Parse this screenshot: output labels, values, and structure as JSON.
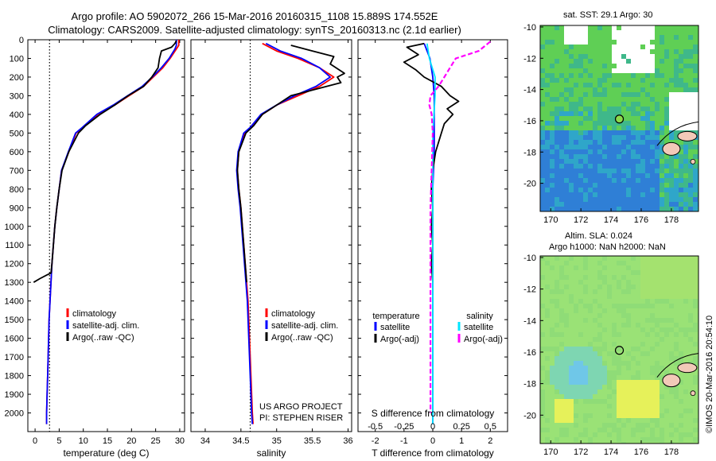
{
  "header": {
    "title_line1": "Argo profile: AO 5902072_266 15-Mar-2016 20160315_1108 15.889S 174.552E",
    "title_line2": "Climatology: CARS2009. Satellite-adjusted climatology: synTS_20160313.nc (2.1d earlier)"
  },
  "project": {
    "line1": "US ARGO PROJECT",
    "line2": "PI: STEPHEN RISER"
  },
  "stamp": "©IMOS 20-Mar-2016 20:54:10",
  "colors": {
    "climatology": "#ff0000",
    "satellite": "#0000ff",
    "argo": "#000000",
    "sal_satellite": "#00e5ff",
    "sal_argo": "#ff00ff"
  },
  "chart_data": [
    {
      "type": "line",
      "name": "temperature-profile",
      "xlabel": "temperature (deg C)",
      "ylabel": "",
      "xlim": [
        -1.5,
        31
      ],
      "ylim": [
        2100,
        0
      ],
      "xticks": [
        0,
        5,
        10,
        15,
        20,
        25,
        30
      ],
      "yticks": [
        0,
        100,
        200,
        300,
        400,
        500,
        600,
        700,
        800,
        900,
        1000,
        1100,
        1200,
        1300,
        1400,
        1500,
        1600,
        1700,
        1800,
        1900,
        2000
      ],
      "reference_x": 3,
      "legend": [
        "climatology",
        "satellite-adj. clim.",
        "Argo(..raw -QC)"
      ],
      "series": [
        {
          "name": "climatology",
          "color": "#ff0000",
          "points": [
            [
              29.8,
              0
            ],
            [
              29.8,
              30
            ],
            [
              29.3,
              50
            ],
            [
              28,
              100
            ],
            [
              26.5,
              150
            ],
            [
              24.5,
              200
            ],
            [
              22.5,
              250
            ],
            [
              19.5,
              300
            ],
            [
              16.5,
              350
            ],
            [
              13,
              400
            ],
            [
              10,
              470
            ],
            [
              8.5,
              500
            ],
            [
              7,
              600
            ],
            [
              5.5,
              700
            ],
            [
              5,
              800
            ],
            [
              4.5,
              900
            ],
            [
              4.1,
              1000
            ],
            [
              3.8,
              1100
            ],
            [
              3.5,
              1200
            ],
            [
              3.3,
              1300
            ],
            [
              3.1,
              1400
            ],
            [
              2.9,
              1500
            ],
            [
              2.8,
              1600
            ],
            [
              2.7,
              1700
            ],
            [
              2.6,
              1800
            ],
            [
              2.5,
              1900
            ],
            [
              2.4,
              2000
            ],
            [
              2.4,
              2060
            ]
          ]
        },
        {
          "name": "satellite-adj. clim.",
          "color": "#0000ff",
          "points": [
            [
              29.3,
              0
            ],
            [
              29.3,
              30
            ],
            [
              29,
              50
            ],
            [
              27.8,
              100
            ],
            [
              26.2,
              150
            ],
            [
              24.3,
              200
            ],
            [
              22.2,
              250
            ],
            [
              19.2,
              300
            ],
            [
              16.2,
              350
            ],
            [
              12.8,
              400
            ],
            [
              9.8,
              470
            ],
            [
              8.4,
              500
            ],
            [
              6.9,
              600
            ],
            [
              5.5,
              700
            ],
            [
              5,
              800
            ],
            [
              4.5,
              900
            ],
            [
              4.1,
              1000
            ],
            [
              3.8,
              1100
            ],
            [
              3.5,
              1200
            ],
            [
              3.3,
              1300
            ],
            [
              3.1,
              1400
            ],
            [
              2.9,
              1500
            ],
            [
              2.8,
              1600
            ],
            [
              2.7,
              1700
            ],
            [
              2.6,
              1800
            ],
            [
              2.5,
              1900
            ],
            [
              2.4,
              2000
            ],
            [
              2.4,
              2060
            ]
          ]
        },
        {
          "name": "Argo(..raw -QC)",
          "color": "#000000",
          "points": [
            [
              29.3,
              5
            ],
            [
              29,
              20
            ],
            [
              28.3,
              40
            ],
            [
              26.2,
              60
            ],
            [
              25.8,
              100
            ],
            [
              25.5,
              150
            ],
            [
              24.2,
              200
            ],
            [
              22.5,
              250
            ],
            [
              19.3,
              300
            ],
            [
              16.5,
              350
            ],
            [
              13.5,
              400
            ],
            [
              10.5,
              460
            ],
            [
              9,
              500
            ],
            [
              7,
              600
            ],
            [
              5.6,
              700
            ],
            [
              5,
              800
            ],
            [
              4.5,
              900
            ],
            [
              4.1,
              1000
            ],
            [
              3.8,
              1100
            ],
            [
              3.5,
              1200
            ],
            [
              3.3,
              1250
            ],
            [
              2.5,
              1260
            ],
            [
              1,
              1280
            ],
            [
              -0.3,
              1300
            ]
          ]
        }
      ]
    },
    {
      "type": "line",
      "name": "salinity-profile",
      "xlabel": "salinity",
      "ylabel": "",
      "xlim": [
        33.8,
        36.05
      ],
      "ylim": [
        2100,
        0
      ],
      "xticks": [
        34,
        34.5,
        35,
        35.5,
        36
      ],
      "reference_x": 34.63,
      "legend": [
        "climatology",
        "satellite-adj. clim.",
        "Argo(..raw -QC)"
      ],
      "series": [
        {
          "name": "climatology",
          "color": "#ff0000",
          "points": [
            [
              34.8,
              20
            ],
            [
              35,
              60
            ],
            [
              35.3,
              100
            ],
            [
              35.6,
              150
            ],
            [
              35.8,
              200
            ],
            [
              35.6,
              250
            ],
            [
              35.3,
              300
            ],
            [
              35,
              350
            ],
            [
              34.8,
              400
            ],
            [
              34.65,
              470
            ],
            [
              34.55,
              500
            ],
            [
              34.47,
              600
            ],
            [
              34.45,
              700
            ],
            [
              34.47,
              800
            ],
            [
              34.5,
              900
            ],
            [
              34.52,
              1000
            ],
            [
              34.54,
              1100
            ],
            [
              34.56,
              1200
            ],
            [
              34.58,
              1300
            ],
            [
              34.6,
              1400
            ],
            [
              34.62,
              1600
            ],
            [
              34.64,
              1800
            ],
            [
              34.66,
              2000
            ],
            [
              34.67,
              2060
            ]
          ]
        },
        {
          "name": "satellite-adj. clim.",
          "color": "#0000ff",
          "points": [
            [
              34.85,
              20
            ],
            [
              35.05,
              60
            ],
            [
              35.35,
              100
            ],
            [
              35.6,
              150
            ],
            [
              35.75,
              200
            ],
            [
              35.55,
              250
            ],
            [
              35.25,
              300
            ],
            [
              35,
              350
            ],
            [
              34.78,
              400
            ],
            [
              34.63,
              470
            ],
            [
              34.54,
              500
            ],
            [
              34.46,
              600
            ],
            [
              34.44,
              700
            ],
            [
              34.46,
              800
            ],
            [
              34.49,
              900
            ],
            [
              34.51,
              1000
            ],
            [
              34.53,
              1100
            ],
            [
              34.55,
              1200
            ],
            [
              34.57,
              1300
            ],
            [
              34.59,
              1400
            ],
            [
              34.61,
              1600
            ],
            [
              34.63,
              1800
            ],
            [
              34.65,
              2000
            ],
            [
              34.66,
              2060
            ]
          ]
        },
        {
          "name": "Argo(..raw -QC)",
          "color": "#000000",
          "points": [
            [
              35.2,
              30
            ],
            [
              35.5,
              60
            ],
            [
              35.8,
              90
            ],
            [
              35.75,
              130
            ],
            [
              35.95,
              180
            ],
            [
              35.85,
              200
            ],
            [
              35.9,
              230
            ],
            [
              35.5,
              270
            ],
            [
              35.2,
              300
            ],
            [
              35,
              350
            ],
            [
              34.8,
              400
            ],
            [
              34.68,
              460
            ],
            [
              34.57,
              500
            ],
            [
              34.47,
              600
            ],
            [
              34.45,
              700
            ],
            [
              34.47,
              800
            ],
            [
              34.5,
              900
            ],
            [
              34.52,
              1000
            ],
            [
              34.54,
              1100
            ],
            [
              34.56,
              1200
            ],
            [
              34.58,
              1300
            ]
          ]
        }
      ]
    },
    {
      "type": "line",
      "name": "difference-profile",
      "xlabel": "T difference from climatology",
      "x2label": "S difference from climatology",
      "xlim": [
        -2.6,
        2.6
      ],
      "ylim": [
        2100,
        0
      ],
      "xticks": [
        -2,
        -1,
        0,
        1,
        2
      ],
      "x2ticks": [
        -0.5,
        -0.25,
        0,
        0.25,
        0.5
      ],
      "x2ticklabels": [
        "-0.5",
        "-0.25",
        "0",
        "0.25",
        "0.5"
      ],
      "legend_headers": [
        "temperature",
        "salinity"
      ],
      "legend": [
        "satellite",
        "Argo(-adj)",
        "satellite",
        "Argo(-adj)"
      ],
      "series": [
        {
          "name": "temperature satellite",
          "color": "#0000ff",
          "axis": "T",
          "points": [
            [
              -0.3,
              20
            ],
            [
              -0.2,
              60
            ],
            [
              -0.1,
              100
            ],
            [
              0,
              200
            ],
            [
              0.05,
              300
            ],
            [
              0.05,
              400
            ],
            [
              0.05,
              600
            ],
            [
              0,
              800
            ],
            [
              0,
              1000
            ],
            [
              0,
              1500
            ],
            [
              0,
              2060
            ]
          ]
        },
        {
          "name": "temperature Argo(-adj)",
          "color": "#000000",
          "axis": "T",
          "points": [
            [
              -0.3,
              20
            ],
            [
              -0.9,
              40
            ],
            [
              -0.5,
              80
            ],
            [
              -1,
              120
            ],
            [
              -0.6,
              160
            ],
            [
              -0.3,
              200
            ],
            [
              0.3,
              250
            ],
            [
              0.6,
              300
            ],
            [
              0.9,
              330
            ],
            [
              0.5,
              370
            ],
            [
              0.7,
              400
            ],
            [
              0.4,
              450
            ],
            [
              0.3,
              500
            ],
            [
              0.1,
              600
            ],
            [
              0,
              700
            ],
            [
              -0.05,
              800
            ],
            [
              0,
              900
            ],
            [
              -0.05,
              1000
            ],
            [
              0,
              1100
            ],
            [
              -0.05,
              1200
            ],
            [
              0,
              1300
            ]
          ]
        },
        {
          "name": "salinity satellite",
          "color": "#00e5ff",
          "axis": "S",
          "points": [
            [
              -0.05,
              20
            ],
            [
              -0.03,
              100
            ],
            [
              0.02,
              200
            ],
            [
              0.02,
              300
            ],
            [
              0,
              500
            ],
            [
              0,
              1000
            ],
            [
              0,
              2060
            ]
          ]
        },
        {
          "name": "salinity Argo(-adj)",
          "color": "#ff00ff",
          "axis": "S",
          "points": [
            [
              0.5,
              10
            ],
            [
              0.4,
              60
            ],
            [
              0.2,
              100
            ],
            [
              0.15,
              150
            ],
            [
              0.1,
              200
            ],
            [
              0.05,
              250
            ],
            [
              -0.02,
              300
            ],
            [
              -0.03,
              350
            ],
            [
              -0.01,
              400
            ],
            [
              0,
              500
            ],
            [
              -0.01,
              700
            ],
            [
              -0.02,
              900
            ],
            [
              -0.02,
              1100
            ],
            [
              -0.02,
              1300
            ],
            [
              -0.02,
              1500
            ],
            [
              -0.02,
              1700
            ],
            [
              -0.02,
              2000
            ]
          ]
        }
      ]
    },
    {
      "type": "heatmap",
      "name": "sst-map",
      "title": "sat. SST: 29.1 Argo: 30",
      "xlim": [
        169.3,
        179.8
      ],
      "ylim": [
        -21.8,
        -9.9
      ],
      "xticks": [
        170,
        172,
        174,
        176,
        178
      ],
      "yticks": [
        -10,
        -12,
        -14,
        -16,
        -18,
        -20
      ],
      "argo_position": [
        174.552,
        -15.889
      ]
    },
    {
      "type": "heatmap",
      "name": "sla-map",
      "title_line1": "Altim. SLA: 0.024",
      "title_line2": "Argo h1000: NaN h2000: NaN",
      "xlim": [
        169.3,
        179.8
      ],
      "ylim": [
        -21.8,
        -9.9
      ],
      "xticks": [
        170,
        172,
        174,
        176,
        178
      ],
      "yticks": [
        -10,
        -12,
        -14,
        -16,
        -18,
        -20
      ],
      "argo_position": [
        174.552,
        -15.889
      ]
    }
  ]
}
